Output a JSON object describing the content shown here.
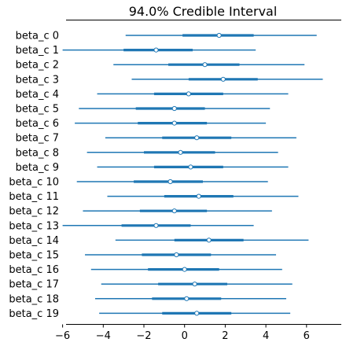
{
  "chart_data": {
    "type": "forest",
    "title": "94.0% Credible Interval",
    "xlim": [
      -7.3,
      7.4
    ],
    "xticks": [
      -6,
      -4,
      -2,
      0,
      2,
      4,
      6
    ],
    "xtick_labels": [
      "−6",
      "−4",
      "−2",
      "0",
      "2",
      "4",
      "6"
    ],
    "grid": false,
    "color": "#1f77b4",
    "marker_face": "#ffffff",
    "rows": [
      {
        "label": "beta_c 0",
        "hdi_low": -2.9,
        "hdi_high": 6.5,
        "iqr_low": -0.1,
        "iqr_high": 3.4,
        "mean": 1.7
      },
      {
        "label": "beta_c 1",
        "hdi_low": -6.0,
        "hdi_high": 3.5,
        "iqr_low": -3.0,
        "iqr_high": 0.4,
        "mean": -1.4
      },
      {
        "label": "beta_c 2",
        "hdi_low": -3.5,
        "hdi_high": 5.9,
        "iqr_low": -0.8,
        "iqr_high": 2.7,
        "mean": 1.0
      },
      {
        "label": "beta_c 3",
        "hdi_low": -2.6,
        "hdi_high": 6.8,
        "iqr_low": 0.2,
        "iqr_high": 3.6,
        "mean": 1.9
      },
      {
        "label": "beta_c 4",
        "hdi_low": -4.3,
        "hdi_high": 5.1,
        "iqr_low": -1.5,
        "iqr_high": 1.9,
        "mean": 0.2
      },
      {
        "label": "beta_c 5",
        "hdi_low": -5.2,
        "hdi_high": 4.2,
        "iqr_low": -2.4,
        "iqr_high": 1.0,
        "mean": -0.5
      },
      {
        "label": "beta_c 6",
        "hdi_low": -5.4,
        "hdi_high": 4.0,
        "iqr_low": -2.3,
        "iqr_high": 1.1,
        "mean": -0.5
      },
      {
        "label": "beta_c 7",
        "hdi_low": -3.9,
        "hdi_high": 5.5,
        "iqr_low": -1.1,
        "iqr_high": 2.3,
        "mean": 0.6
      },
      {
        "label": "beta_c 8",
        "hdi_low": -4.8,
        "hdi_high": 4.6,
        "iqr_low": -2.0,
        "iqr_high": 1.5,
        "mean": -0.2
      },
      {
        "label": "beta_c 9",
        "hdi_low": -4.3,
        "hdi_high": 5.1,
        "iqr_low": -1.5,
        "iqr_high": 1.9,
        "mean": 0.3
      },
      {
        "label": "beta_c 10",
        "hdi_low": -5.3,
        "hdi_high": 4.1,
        "iqr_low": -2.5,
        "iqr_high": 0.9,
        "mean": -0.7
      },
      {
        "label": "beta_c 11",
        "hdi_low": -3.8,
        "hdi_high": 5.6,
        "iqr_low": -1.0,
        "iqr_high": 2.4,
        "mean": 0.7
      },
      {
        "label": "beta_c 12",
        "hdi_low": -5.0,
        "hdi_high": 4.3,
        "iqr_low": -2.2,
        "iqr_high": 1.1,
        "mean": -0.5
      },
      {
        "label": "beta_c 13",
        "hdi_low": -6.0,
        "hdi_high": 3.4,
        "iqr_low": -3.1,
        "iqr_high": 0.3,
        "mean": -1.4
      },
      {
        "label": "beta_c 14",
        "hdi_low": -3.4,
        "hdi_high": 6.1,
        "iqr_low": -0.5,
        "iqr_high": 2.9,
        "mean": 1.2
      },
      {
        "label": "beta_c 15",
        "hdi_low": -4.9,
        "hdi_high": 4.5,
        "iqr_low": -2.1,
        "iqr_high": 1.3,
        "mean": -0.4
      },
      {
        "label": "beta_c 16",
        "hdi_low": -4.6,
        "hdi_high": 4.8,
        "iqr_low": -1.8,
        "iqr_high": 1.7,
        "mean": 0.0
      },
      {
        "label": "beta_c 17",
        "hdi_low": -4.1,
        "hdi_high": 5.3,
        "iqr_low": -1.3,
        "iqr_high": 2.1,
        "mean": 0.5
      },
      {
        "label": "beta_c 18",
        "hdi_low": -4.4,
        "hdi_high": 5.0,
        "iqr_low": -1.6,
        "iqr_high": 1.8,
        "mean": 0.1
      },
      {
        "label": "beta_c 19",
        "hdi_low": -4.2,
        "hdi_high": 5.2,
        "iqr_low": -1.1,
        "iqr_high": 2.3,
        "mean": 0.6
      }
    ]
  }
}
